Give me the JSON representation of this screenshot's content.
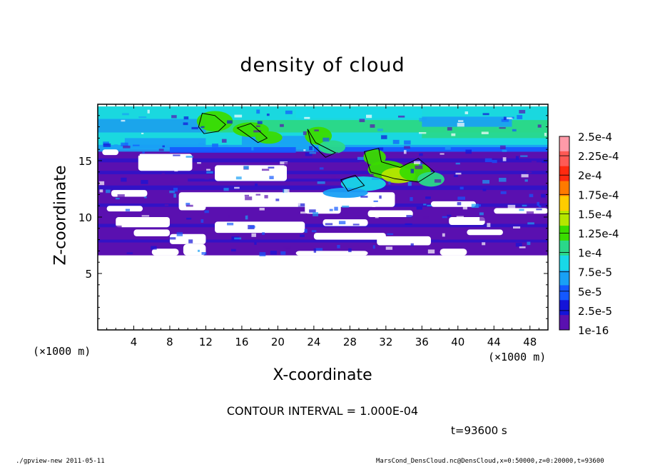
{
  "chart_data": {
    "type": "heatmap",
    "title": "density of cloud",
    "xlabel": "X-coordinate",
    "ylabel": "Z-coordinate",
    "x_unit": "(×1000 m)",
    "z_unit": "(×1000 m)",
    "xlim": [
      0,
      50
    ],
    "ylim": [
      0,
      20
    ],
    "x_ticks": [
      "4",
      "8",
      "12",
      "16",
      "20",
      "24",
      "28",
      "32",
      "36",
      "40",
      "44",
      "48"
    ],
    "y_ticks": [
      "5",
      "10",
      "15"
    ],
    "contour_interval": "CONTOUR INTERVAL = 1.000E-04",
    "time_label": "t=93600 s",
    "colorbar": {
      "labels": [
        "2.5e-4",
        "2.25e-4",
        "2e-4",
        "1.75e-4",
        "1.5e-4",
        "1.25e-4",
        "1e-4",
        "7.5e-5",
        "5e-5",
        "2.5e-5",
        "1e-16"
      ],
      "colors": [
        "#ff9aa8",
        "#ff5a55",
        "#ff2a10",
        "#ff7a00",
        "#ffcc00",
        "#b5e600",
        "#3adc00",
        "#2ad88a",
        "#18d8e8",
        "#19a0f5",
        "#1458ff",
        "#1414d8",
        "#5a10b0"
      ]
    },
    "field_layers": [
      {
        "z_range": [
          6.6,
          12.5
        ],
        "x_range": [
          0,
          50
        ],
        "value": "1e-16"
      },
      {
        "z_range": [
          12.5,
          16.0
        ],
        "x_range": [
          0,
          50
        ],
        "value": "2.5e-5"
      },
      {
        "z_range": [
          16.0,
          19.8
        ],
        "x_range": [
          0,
          50
        ],
        "value": "5e-5 to 7.5e-5"
      },
      {
        "z_range": [
          11.5,
          16.5
        ],
        "x_range": [
          25,
          38
        ],
        "value": "1e-4 to 1.5e-4"
      }
    ]
  },
  "footer": {
    "left": "./gpview-new  2011-05-11",
    "right": "MarsCond_DensCloud.nc@DensCloud,x=0:50000,z=0:20000,t=93600"
  }
}
